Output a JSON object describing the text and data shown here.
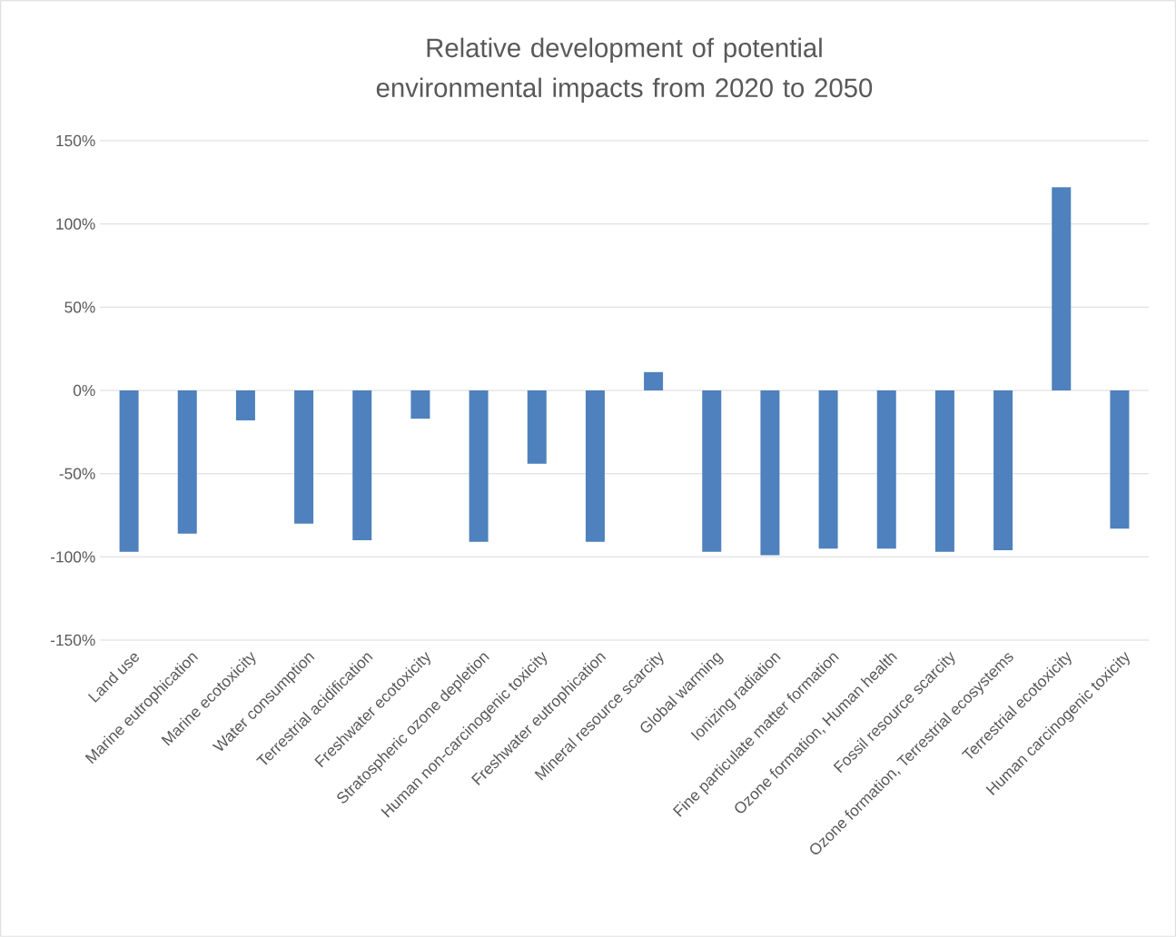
{
  "chart_data": {
    "type": "bar",
    "title": "Relative development of potential environmental impacts from 2020 to 2050",
    "categories": [
      "Land use",
      "Marine eutrophication",
      "Marine ecotoxicity",
      "Water consumption",
      "Terrestrial acidification",
      "Freshwater ecotoxicity",
      "Stratospheric ozone depletion",
      "Human non-carcinogenic toxicity",
      "Freshwater eutrophication",
      "Mineral resource scarcity",
      "Global warming",
      "Ionizing radiation",
      "Fine particulate matter formation",
      "Ozone formation, Human health",
      "Fossil resource scarcity",
      "Ozone formation, Terrestrial ecosystems",
      "Terrestrial ecotoxicity",
      "Human carcinogenic toxicity"
    ],
    "values": [
      -97,
      -86,
      -18,
      -80,
      -90,
      -17,
      -91,
      -44,
      -91,
      11,
      -97,
      -99,
      -95,
      -95,
      -97,
      -96,
      122,
      -83
    ],
    "color": "#4e81bd",
    "ylim": [
      -150,
      150
    ],
    "yticks": [
      {
        "value": -150,
        "label": "-150%"
      },
      {
        "value": -100,
        "label": "-100%"
      },
      {
        "value": -50,
        "label": "-50%"
      },
      {
        "value": 0,
        "label": "0%"
      },
      {
        "value": 50,
        "label": "50%"
      },
      {
        "value": 100,
        "label": "100%"
      },
      {
        "value": 150,
        "label": "150%"
      }
    ],
    "grid": "y"
  }
}
